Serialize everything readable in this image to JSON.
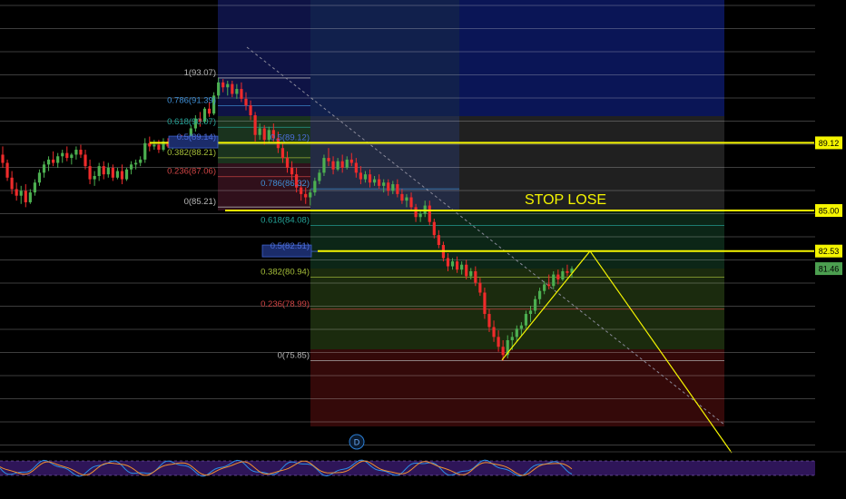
{
  "chart_data": {
    "type": "candlestick",
    "colors": {
      "up": "#4caf50",
      "down": "#ef2b2b",
      "key_level": "#f5f500",
      "tag_bg": "#f5f500",
      "price_tag_bg": "#4c9f50",
      "price_tag_text": "#ffffff",
      "grid": "#e0e0e0",
      "trendline": "#8a8a9a"
    },
    "fib_retracement_left": [
      {
        "ratio": "1",
        "price": "93.07",
        "text": "1(93.07)",
        "color": "#b9b9b9"
      },
      {
        "ratio": "0.786",
        "price": "91.39",
        "text": "0.786(91.39)",
        "color": "#3f8fd6"
      },
      {
        "ratio": "0.618",
        "price": "90.07",
        "text": "0.618(90.07)",
        "color": "#26a69a"
      },
      {
        "ratio": "0.5",
        "price": "89.14",
        "text": "0.5(89.14)",
        "color": "#4c6edb",
        "highlight": true
      },
      {
        "ratio": "0.382",
        "price": "88.21",
        "text": "0.382(88.21)",
        "color": "#a6bf3a"
      },
      {
        "ratio": "0.236",
        "price": "87.06",
        "text": "0.236(87.06)",
        "color": "#d04545"
      },
      {
        "ratio": "0",
        "price": "85.21",
        "text": "0(85.21)",
        "color": "#b9b9b9"
      }
    ],
    "fib_retracement_mid": [
      {
        "ratio": "0.5",
        "price": "89.12",
        "text": "0.5(89.12)",
        "color": "#4c6edb"
      },
      {
        "ratio": "0.786",
        "price": "86.32",
        "text": "0.786(86.32)",
        "color": "#3f8fd6"
      }
    ],
    "fib_retracement_right": [
      {
        "ratio": "0.618",
        "price": "84.08",
        "text": "0.618(84.08)",
        "color": "#26a69a"
      },
      {
        "ratio": "0.5",
        "price": "82.51",
        "text": "0.5(82.51)",
        "color": "#4c6edb",
        "highlight": true
      },
      {
        "ratio": "0.382",
        "price": "80.94",
        "text": "0.382(80.94)",
        "color": "#a6bf3a"
      },
      {
        "ratio": "0.236",
        "price": "78.99",
        "text": "0.236(78.99)",
        "color": "#d04545"
      },
      {
        "ratio": "0",
        "price": "75.85",
        "text": "0(75.85)",
        "color": "#b9b9b9"
      }
    ],
    "key_levels": [
      {
        "price": 89.12,
        "tag": "89.12"
      },
      {
        "price": 85.0,
        "tag": "85.00"
      },
      {
        "price": 82.53,
        "tag": "82.53"
      }
    ],
    "current_price": {
      "price": 81.46,
      "tag": "81.46"
    },
    "annotations": {
      "stop_text": "STOP LOSE",
      "marker": "D"
    },
    "projection_path": [
      [
        0,
        75.9
      ],
      [
        1,
        82.53
      ],
      [
        2,
        73.9
      ]
    ],
    "candles": [
      [
        88.4,
        88.9,
        87.6,
        87.9
      ],
      [
        87.9,
        88.1,
        86.8,
        87.0
      ],
      [
        87.0,
        87.4,
        86.0,
        86.3
      ],
      [
        86.3,
        86.7,
        85.6,
        85.9
      ],
      [
        85.9,
        86.5,
        85.4,
        86.2
      ],
      [
        86.2,
        86.6,
        85.2,
        85.5
      ],
      [
        85.5,
        86.3,
        85.4,
        86.1
      ],
      [
        86.1,
        86.9,
        85.9,
        86.7
      ],
      [
        86.7,
        87.5,
        86.5,
        87.3
      ],
      [
        87.3,
        88.0,
        87.0,
        87.8
      ],
      [
        87.8,
        88.3,
        87.4,
        88.1
      ],
      [
        88.1,
        88.6,
        87.7,
        87.9
      ],
      [
        87.9,
        88.5,
        87.6,
        88.3
      ],
      [
        88.3,
        88.7,
        87.9,
        88.5
      ],
      [
        88.5,
        88.9,
        88.0,
        88.2
      ],
      [
        88.2,
        88.5,
        87.8,
        88.4
      ],
      [
        88.4,
        88.9,
        88.1,
        88.7
      ],
      [
        88.7,
        89.0,
        88.2,
        88.4
      ],
      [
        88.4,
        88.7,
        87.5,
        87.7
      ],
      [
        87.7,
        88.1,
        86.6,
        86.9
      ],
      [
        86.9,
        87.4,
        86.5,
        87.1
      ],
      [
        87.1,
        87.9,
        86.8,
        87.7
      ],
      [
        87.7,
        88.0,
        86.9,
        87.2
      ],
      [
        87.2,
        87.9,
        87.0,
        87.6
      ],
      [
        87.6,
        87.8,
        86.8,
        87.0
      ],
      [
        87.0,
        87.6,
        86.9,
        87.4
      ],
      [
        87.4,
        87.8,
        86.6,
        86.9
      ],
      [
        86.9,
        87.6,
        86.8,
        87.5
      ],
      [
        87.5,
        88.0,
        87.2,
        87.8
      ],
      [
        87.8,
        88.1,
        87.5,
        87.9
      ],
      [
        87.9,
        88.3,
        87.7,
        88.1
      ],
      [
        88.1,
        89.4,
        87.9,
        89.1
      ],
      [
        89.1,
        89.5,
        88.6,
        88.9
      ],
      [
        88.9,
        89.3,
        88.7,
        89.0
      ],
      [
        89.0,
        89.3,
        88.5,
        88.7
      ],
      [
        88.7,
        89.4,
        88.6,
        89.2
      ],
      [
        89.2,
        89.4,
        88.8,
        88.9
      ],
      [
        88.9,
        89.2,
        88.7,
        89.1
      ],
      [
        89.1,
        89.5,
        88.9,
        89.3
      ],
      [
        89.3,
        89.6,
        88.8,
        89.0
      ],
      [
        89.0,
        89.5,
        88.9,
        89.4
      ],
      [
        89.4,
        90.2,
        89.3,
        90.0
      ],
      [
        90.0,
        90.8,
        89.8,
        90.6
      ],
      [
        90.6,
        91.0,
        90.1,
        90.4
      ],
      [
        90.4,
        91.3,
        90.3,
        91.2
      ],
      [
        91.2,
        91.6,
        90.7,
        90.9
      ],
      [
        90.9,
        92.2,
        90.8,
        92.0
      ],
      [
        92.0,
        93.07,
        91.8,
        92.8
      ],
      [
        92.8,
        93.0,
        92.2,
        92.5
      ],
      [
        92.5,
        92.9,
        92.0,
        92.7
      ],
      [
        92.7,
        92.9,
        91.9,
        92.1
      ],
      [
        92.1,
        92.7,
        91.8,
        92.4
      ],
      [
        92.4,
        92.8,
        91.6,
        91.8
      ],
      [
        91.8,
        92.2,
        91.1,
        91.4
      ],
      [
        91.4,
        91.7,
        90.5,
        90.8
      ],
      [
        90.8,
        91.0,
        89.2,
        89.6
      ],
      [
        89.6,
        90.3,
        89.3,
        90.0
      ],
      [
        90.0,
        90.2,
        89.0,
        89.3
      ],
      [
        89.3,
        90.1,
        89.1,
        89.9
      ],
      [
        89.9,
        90.3,
        89.2,
        89.4
      ],
      [
        89.4,
        89.8,
        88.5,
        88.8
      ],
      [
        88.8,
        89.1,
        87.9,
        88.2
      ],
      [
        88.2,
        88.6,
        87.3,
        87.6
      ],
      [
        87.6,
        88.0,
        86.8,
        87.2
      ],
      [
        87.2,
        87.6,
        86.1,
        86.4
      ],
      [
        86.4,
        86.8,
        85.6,
        86.0
      ],
      [
        86.0,
        86.4,
        85.4,
        85.8
      ],
      [
        85.8,
        86.3,
        85.3,
        86.1
      ],
      [
        86.1,
        87.0,
        85.9,
        86.8
      ],
      [
        86.8,
        87.5,
        86.6,
        87.3
      ],
      [
        87.3,
        88.4,
        87.1,
        88.2
      ],
      [
        88.2,
        88.8,
        87.7,
        88.0
      ],
      [
        88.0,
        88.3,
        87.2,
        87.5
      ],
      [
        87.5,
        88.2,
        87.4,
        88.0
      ],
      [
        88.0,
        88.4,
        87.3,
        87.6
      ],
      [
        87.6,
        88.3,
        87.5,
        88.1
      ],
      [
        88.1,
        88.5,
        87.7,
        87.9
      ],
      [
        87.9,
        88.2,
        87.0,
        87.3
      ],
      [
        87.3,
        87.7,
        86.6,
        86.9
      ],
      [
        86.9,
        87.4,
        86.7,
        87.2
      ],
      [
        87.2,
        87.5,
        86.4,
        86.7
      ],
      [
        86.7,
        87.1,
        86.5,
        86.9
      ],
      [
        86.9,
        87.2,
        86.3,
        86.5
      ],
      [
        86.5,
        86.9,
        86.1,
        86.7
      ],
      [
        86.7,
        86.9,
        85.9,
        86.2
      ],
      [
        86.2,
        86.8,
        86.0,
        86.6
      ],
      [
        86.6,
        86.9,
        85.8,
        86.0
      ],
      [
        86.0,
        86.3,
        85.4,
        85.6
      ],
      [
        85.6,
        86.0,
        85.2,
        85.8
      ],
      [
        85.8,
        86.1,
        85.0,
        85.2
      ],
      [
        85.2,
        85.4,
        84.3,
        84.6
      ],
      [
        84.6,
        85.0,
        84.3,
        84.8
      ],
      [
        84.8,
        85.6,
        84.6,
        85.3
      ],
      [
        85.3,
        85.6,
        84.1,
        84.3
      ],
      [
        84.3,
        84.5,
        83.3,
        83.5
      ],
      [
        83.5,
        83.8,
        82.7,
        82.9
      ],
      [
        82.9,
        83.1,
        81.9,
        82.1
      ],
      [
        82.1,
        82.4,
        81.3,
        81.6
      ],
      [
        81.6,
        82.1,
        81.4,
        81.9
      ],
      [
        81.9,
        82.2,
        81.2,
        81.4
      ],
      [
        81.4,
        81.9,
        81.1,
        81.7
      ],
      [
        81.7,
        82.0,
        80.8,
        81.0
      ],
      [
        81.0,
        81.5,
        80.8,
        81.3
      ],
      [
        81.3,
        81.6,
        80.4,
        80.6
      ],
      [
        80.6,
        80.9,
        79.8,
        80.0
      ],
      [
        80.0,
        80.3,
        78.4,
        78.7
      ],
      [
        78.7,
        79.0,
        77.6,
        77.9
      ],
      [
        77.9,
        78.3,
        77.0,
        77.3
      ],
      [
        77.3,
        77.7,
        76.4,
        76.7
      ],
      [
        76.7,
        77.1,
        75.85,
        76.2
      ],
      [
        76.2,
        77.4,
        76.0,
        77.1
      ],
      [
        77.1,
        77.6,
        76.5,
        77.3
      ],
      [
        77.3,
        78.0,
        77.0,
        77.8
      ],
      [
        77.8,
        78.2,
        77.4,
        78.0
      ],
      [
        78.0,
        78.9,
        77.8,
        78.7
      ],
      [
        78.7,
        79.2,
        78.2,
        78.9
      ],
      [
        78.9,
        79.8,
        78.7,
        79.6
      ],
      [
        79.6,
        80.3,
        79.3,
        80.1
      ],
      [
        80.1,
        80.7,
        79.9,
        80.5
      ],
      [
        80.5,
        81.1,
        80.2,
        80.4
      ],
      [
        80.4,
        81.3,
        80.2,
        81.1
      ],
      [
        81.1,
        81.4,
        80.5,
        80.8
      ],
      [
        80.8,
        81.5,
        80.7,
        81.3
      ],
      [
        81.3,
        81.7,
        81.0,
        81.2
      ],
      [
        81.2,
        81.6,
        80.9,
        81.46
      ]
    ]
  }
}
